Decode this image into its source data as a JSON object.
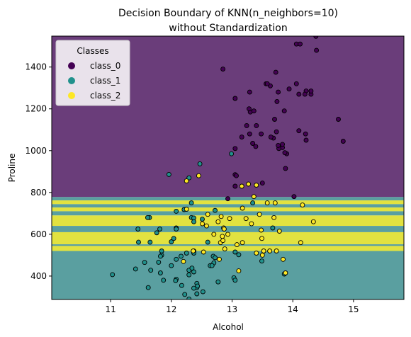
{
  "chart_data": {
    "type": "scatter",
    "title": [
      "Decision Boundary of KNN(n_neighbors=10)",
      "without Standardization"
    ],
    "xlabel": "Alcohol",
    "ylabel": "Proline",
    "xlim": [
      10.03,
      15.83
    ],
    "ylim": [
      288,
      1548
    ],
    "xticks": [
      11,
      12,
      13,
      14,
      15
    ],
    "yticks": [
      400,
      600,
      800,
      1000,
      1200,
      1400
    ],
    "grid": false,
    "legend": {
      "title": "Classes",
      "placement": "top-left",
      "entries": [
        "class_0",
        "class_1",
        "class_2"
      ]
    },
    "colors": {
      "class_0": "#440154",
      "class_1": "#21918c",
      "class_2": "#fde725",
      "region_0": "#6a3d7a",
      "region_1": "#5a9fa0",
      "region_2": "#e2e240"
    },
    "regions": [
      {
        "class": 0,
        "y": [
          778,
          1548
        ]
      },
      {
        "class": 1,
        "y": [
          762,
          778
        ]
      },
      {
        "class": 2,
        "y": [
          744,
          762
        ]
      },
      {
        "class": 1,
        "y": [
          728,
          744
        ]
      },
      {
        "class": 2,
        "y": [
          710,
          728
        ]
      },
      {
        "class": 1,
        "y": [
          690,
          710
        ]
      },
      {
        "class": 2,
        "y": [
          640,
          690
        ]
      },
      {
        "class": 1,
        "y": [
          610,
          640
        ]
      },
      {
        "class": 2,
        "y": [
          552,
          610
        ]
      },
      {
        "class": 1,
        "y": [
          544,
          552
        ]
      },
      {
        "class": 2,
        "y": [
          520,
          544
        ]
      },
      {
        "class": 1,
        "y": [
          288,
          520
        ]
      }
    ],
    "series": [
      {
        "name": "class_0",
        "x": [
          14.38,
          13.58,
          14.06,
          14.39,
          13.72,
          14.12,
          14.22,
          13.76,
          13.94,
          14.2,
          13.74,
          13.86,
          14.1,
          13.63,
          13.56,
          13.3,
          13.34,
          13.68,
          13.83,
          13.83,
          14.75,
          13.64,
          14.3,
          14.22,
          14.3,
          14.21,
          13.73,
          13.77,
          13.05,
          13.16,
          13.9,
          12.93,
          13.48,
          13.7,
          14.83,
          13.36,
          13.39,
          14.02,
          13.76,
          13.88,
          13.58,
          13.5,
          13.05,
          13.05,
          13.07,
          13.87,
          13.24,
          13.28,
          12.85,
          13.29,
          13.05,
          13.29,
          14.06,
          14.1,
          13.4
        ],
        "y": [
          1547,
          1565,
          1510,
          1480,
          1375,
          1510,
          1285,
          1280,
          1295,
          1270,
          1235,
          1190,
          1095,
          1310,
          1320,
          1185,
          1035,
          1060,
          1015,
          1030,
          1150,
          1065,
          1270,
          1050,
          1285,
          1080,
          1090,
          1010,
          1010,
          1065,
          985,
          770,
          1080,
          1150,
          1045,
          1190,
          1020,
          780,
          1025,
          915,
          1320,
          845,
          885,
          830,
          880,
          990,
          1120,
          1200,
          1390,
          1280,
          1250,
          1080,
          1320,
          1270,
          1120
        ]
      },
      {
        "name": "class_1",
        "x": [
          12.37,
          12.33,
          12.64,
          13.67,
          12.37,
          12.17,
          12.37,
          13.11,
          12.37,
          13.34,
          12.21,
          12.29,
          13.86,
          13.49,
          12.99,
          11.96,
          11.66,
          13.03,
          11.84,
          12.33,
          12.7,
          12.0,
          12.72,
          12.08,
          13.05,
          11.84,
          12.67,
          12.16,
          11.65,
          11.64,
          12.08,
          12.08,
          12.0,
          12.69,
          12.29,
          11.62,
          12.47,
          11.81,
          12.29,
          12.37,
          12.29,
          12.08,
          12.6,
          12.34,
          11.82,
          12.51,
          12.42,
          12.25,
          12.72,
          12.22,
          11.61,
          11.46,
          12.52,
          11.76,
          11.41,
          12.08,
          11.03,
          11.82,
          12.42,
          12.77,
          12.0,
          11.45,
          11.56,
          12.42,
          13.05,
          11.87,
          12.07,
          12.43,
          11.79,
          12.37,
          12.04
        ],
        "y": [
          520,
          680,
          450,
          630,
          420,
          355,
          678,
          502,
          510,
          750,
          718,
          870,
          410,
          472,
          985,
          886,
          428,
          392,
          500,
          750,
          463,
          278,
          714,
          630,
          515,
          520,
          450,
          495,
          562,
          680,
          625,
          480,
          450,
          495,
          290,
          345,
          937,
          625,
          428,
          660,
          406,
          710,
          562,
          438,
          415,
          672,
          315,
          510,
          488,
          312,
          680,
          562,
          325,
          607,
          434,
          385,
          407,
          495,
          345,
          372,
          564,
          625,
          465,
          365,
          380,
          380,
          378,
          352,
          466,
          342,
          580
        ]
      },
      {
        "name": "class_2",
        "x": [
          12.86,
          12.88,
          12.81,
          12.7,
          12.51,
          12.6,
          12.25,
          12.53,
          13.49,
          12.84,
          12.93,
          13.36,
          13.52,
          13.62,
          12.25,
          13.16,
          13.88,
          12.87,
          13.32,
          13.08,
          13.5,
          12.79,
          13.11,
          13.23,
          12.58,
          13.17,
          13.84,
          12.45,
          14.34,
          13.48,
          12.36,
          13.69,
          12.85,
          12.96,
          13.78,
          13.73,
          13.45,
          12.82,
          13.58,
          13.4,
          12.2,
          12.77,
          14.16,
          13.71,
          13.4,
          13.27,
          13.17,
          14.13
        ],
        "y": [
          630,
          530,
          560,
          600,
          650,
          695,
          720,
          515,
          580,
          590,
          600,
          780,
          520,
          520,
          855,
          830,
          415,
          625,
          650,
          550,
          500,
          480,
          425,
          675,
          640,
          725,
          480,
          880,
          660,
          620,
          520,
          680,
          570,
          675,
          615,
          520,
          695,
          685,
          750,
          510,
          470,
          660,
          740,
          750,
          835,
          840,
          560,
          560
        ]
      }
    ]
  }
}
